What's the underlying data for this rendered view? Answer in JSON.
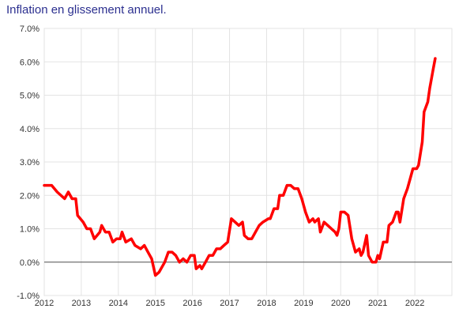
{
  "title": "Inflation en glissement annuel.",
  "colors": {
    "line": "#ff0000",
    "title": "#2b2f8f",
    "grid": "#e3e3e3",
    "zero_line": "#555555"
  },
  "chart_data": {
    "type": "line",
    "title": "Inflation en glissement annuel.",
    "xlabel": "",
    "ylabel": "",
    "ylim": [
      -1.0,
      7.0
    ],
    "xlim": [
      2012.0,
      2023.0
    ],
    "grid": true,
    "yticks": [
      {
        "value": 7,
        "label": "7.0%"
      },
      {
        "value": 6,
        "label": "6.0%"
      },
      {
        "value": 5,
        "label": "5.0%"
      },
      {
        "value": 4,
        "label": "4.0%"
      },
      {
        "value": 3,
        "label": "3.0%"
      },
      {
        "value": 2,
        "label": "2.0%"
      },
      {
        "value": 1,
        "label": "1.0%"
      },
      {
        "value": 0,
        "label": "0.0%"
      },
      {
        "value": -1,
        "label": "-1.0%"
      }
    ],
    "xticks": [
      {
        "value": 2012,
        "label": "2012"
      },
      {
        "value": 2013,
        "label": "2013"
      },
      {
        "value": 2014,
        "label": "2014"
      },
      {
        "value": 2015,
        "label": "2015"
      },
      {
        "value": 2016,
        "label": "2016"
      },
      {
        "value": 2017,
        "label": "2017"
      },
      {
        "value": 2018,
        "label": "2018"
      },
      {
        "value": 2019,
        "label": "2019"
      },
      {
        "value": 2020,
        "label": "2020"
      },
      {
        "value": 2021,
        "label": "2021"
      },
      {
        "value": 2022,
        "label": "2022"
      }
    ],
    "series": [
      {
        "color": "#ff0000",
        "points": [
          [
            2012.0,
            2.3
          ],
          [
            2012.2,
            2.3
          ],
          [
            2012.35,
            2.1
          ],
          [
            2012.55,
            1.9
          ],
          [
            2012.65,
            2.1
          ],
          [
            2012.75,
            1.9
          ],
          [
            2012.85,
            1.9
          ],
          [
            2012.9,
            1.4
          ],
          [
            2013.05,
            1.2
          ],
          [
            2013.15,
            1.0
          ],
          [
            2013.25,
            1.0
          ],
          [
            2013.35,
            0.7
          ],
          [
            2013.5,
            0.9
          ],
          [
            2013.55,
            1.1
          ],
          [
            2013.65,
            0.9
          ],
          [
            2013.75,
            0.9
          ],
          [
            2013.85,
            0.6
          ],
          [
            2013.95,
            0.7
          ],
          [
            2014.05,
            0.7
          ],
          [
            2014.1,
            0.9
          ],
          [
            2014.2,
            0.6
          ],
          [
            2014.35,
            0.7
          ],
          [
            2014.45,
            0.5
          ],
          [
            2014.6,
            0.4
          ],
          [
            2014.7,
            0.5
          ],
          [
            2014.8,
            0.3
          ],
          [
            2014.9,
            0.1
          ],
          [
            2015.0,
            -0.4
          ],
          [
            2015.1,
            -0.3
          ],
          [
            2015.25,
            0.0
          ],
          [
            2015.35,
            0.3
          ],
          [
            2015.45,
            0.3
          ],
          [
            2015.55,
            0.2
          ],
          [
            2015.65,
            0.0
          ],
          [
            2015.75,
            0.1
          ],
          [
            2015.85,
            0.0
          ],
          [
            2015.95,
            0.2
          ],
          [
            2016.05,
            0.2
          ],
          [
            2016.1,
            -0.2
          ],
          [
            2016.2,
            -0.1
          ],
          [
            2016.25,
            -0.2
          ],
          [
            2016.35,
            0.0
          ],
          [
            2016.45,
            0.2
          ],
          [
            2016.55,
            0.2
          ],
          [
            2016.65,
            0.4
          ],
          [
            2016.75,
            0.4
          ],
          [
            2016.85,
            0.5
          ],
          [
            2016.95,
            0.6
          ],
          [
            2017.05,
            1.3
          ],
          [
            2017.15,
            1.2
          ],
          [
            2017.25,
            1.1
          ],
          [
            2017.35,
            1.2
          ],
          [
            2017.4,
            0.8
          ],
          [
            2017.5,
            0.7
          ],
          [
            2017.6,
            0.7
          ],
          [
            2017.7,
            0.9
          ],
          [
            2017.8,
            1.1
          ],
          [
            2017.9,
            1.2
          ],
          [
            2018.05,
            1.3
          ],
          [
            2018.1,
            1.3
          ],
          [
            2018.2,
            1.6
          ],
          [
            2018.3,
            1.6
          ],
          [
            2018.35,
            2.0
          ],
          [
            2018.45,
            2.0
          ],
          [
            2018.55,
            2.3
          ],
          [
            2018.65,
            2.3
          ],
          [
            2018.75,
            2.2
          ],
          [
            2018.85,
            2.2
          ],
          [
            2018.95,
            1.9
          ],
          [
            2019.05,
            1.5
          ],
          [
            2019.15,
            1.2
          ],
          [
            2019.25,
            1.3
          ],
          [
            2019.3,
            1.2
          ],
          [
            2019.4,
            1.3
          ],
          [
            2019.45,
            0.9
          ],
          [
            2019.55,
            1.2
          ],
          [
            2019.65,
            1.1
          ],
          [
            2019.75,
            1.0
          ],
          [
            2019.85,
            0.9
          ],
          [
            2019.9,
            0.8
          ],
          [
            2019.95,
            1.0
          ],
          [
            2020.0,
            1.5
          ],
          [
            2020.1,
            1.5
          ],
          [
            2020.2,
            1.4
          ],
          [
            2020.3,
            0.7
          ],
          [
            2020.4,
            0.3
          ],
          [
            2020.5,
            0.4
          ],
          [
            2020.55,
            0.2
          ],
          [
            2020.6,
            0.3
          ],
          [
            2020.7,
            0.8
          ],
          [
            2020.75,
            0.2
          ],
          [
            2020.85,
            0.0
          ],
          [
            2020.95,
            0.0
          ],
          [
            2021.0,
            0.2
          ],
          [
            2021.05,
            0.1
          ],
          [
            2021.15,
            0.6
          ],
          [
            2021.25,
            0.6
          ],
          [
            2021.3,
            1.1
          ],
          [
            2021.4,
            1.2
          ],
          [
            2021.5,
            1.5
          ],
          [
            2021.55,
            1.5
          ],
          [
            2021.6,
            1.2
          ],
          [
            2021.7,
            1.9
          ],
          [
            2021.8,
            2.2
          ],
          [
            2021.9,
            2.6
          ],
          [
            2021.95,
            2.8
          ],
          [
            2022.0,
            2.8
          ],
          [
            2022.05,
            2.8
          ],
          [
            2022.1,
            2.9
          ],
          [
            2022.2,
            3.6
          ],
          [
            2022.25,
            4.5
          ],
          [
            2022.35,
            4.8
          ],
          [
            2022.4,
            5.2
          ],
          [
            2022.5,
            5.8
          ],
          [
            2022.55,
            6.1
          ]
        ]
      }
    ]
  }
}
